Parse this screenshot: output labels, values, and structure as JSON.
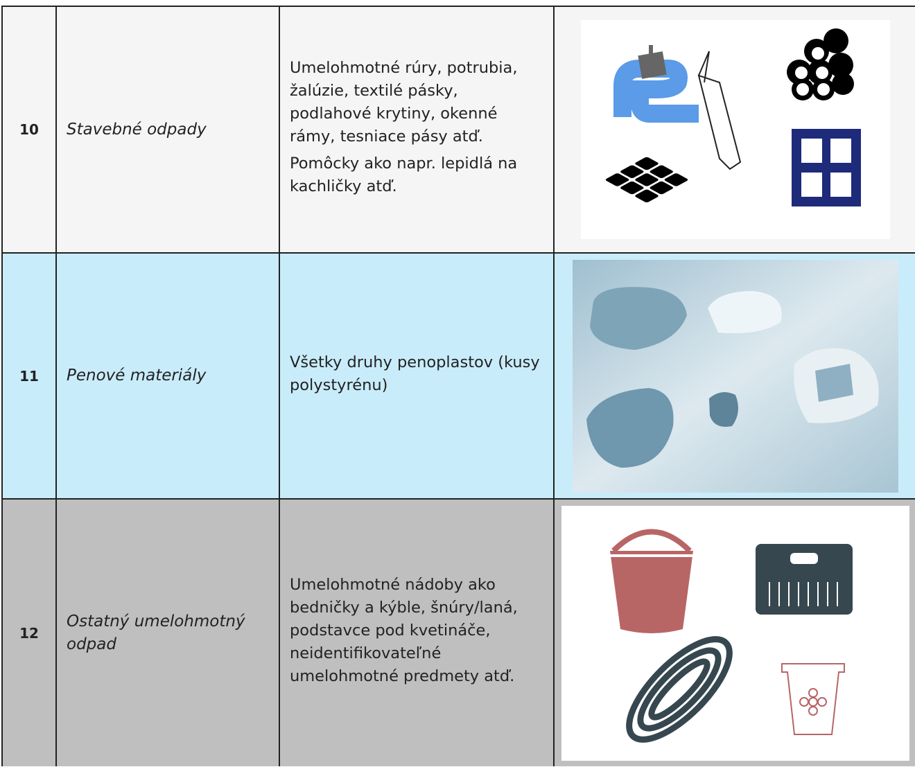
{
  "table": {
    "rows": [
      {
        "number": "10",
        "category": "Stavebné odpady",
        "description": [
          "Umelohmotné rúry, potrubia, žalúzie, textilé pásky, podlahové krytiny, okenné rámy, tesniace pásy atď.",
          "Pomôcky ako napr. lepidlá na kachličky atď."
        ]
      },
      {
        "number": "11",
        "category": "Penové materiály",
        "description": [
          "Všetky druhy penoplastov (kusy polystyrénu)"
        ]
      },
      {
        "number": "12",
        "category": "Ostatný umelohmotný odpad",
        "description": [
          "Umelohmotné nádoby ako bedničky a kýble, šnúry/laná, podstavce pod kvetináče, neidentifikovateľné umelohmotné predmety atď."
        ]
      }
    ]
  }
}
